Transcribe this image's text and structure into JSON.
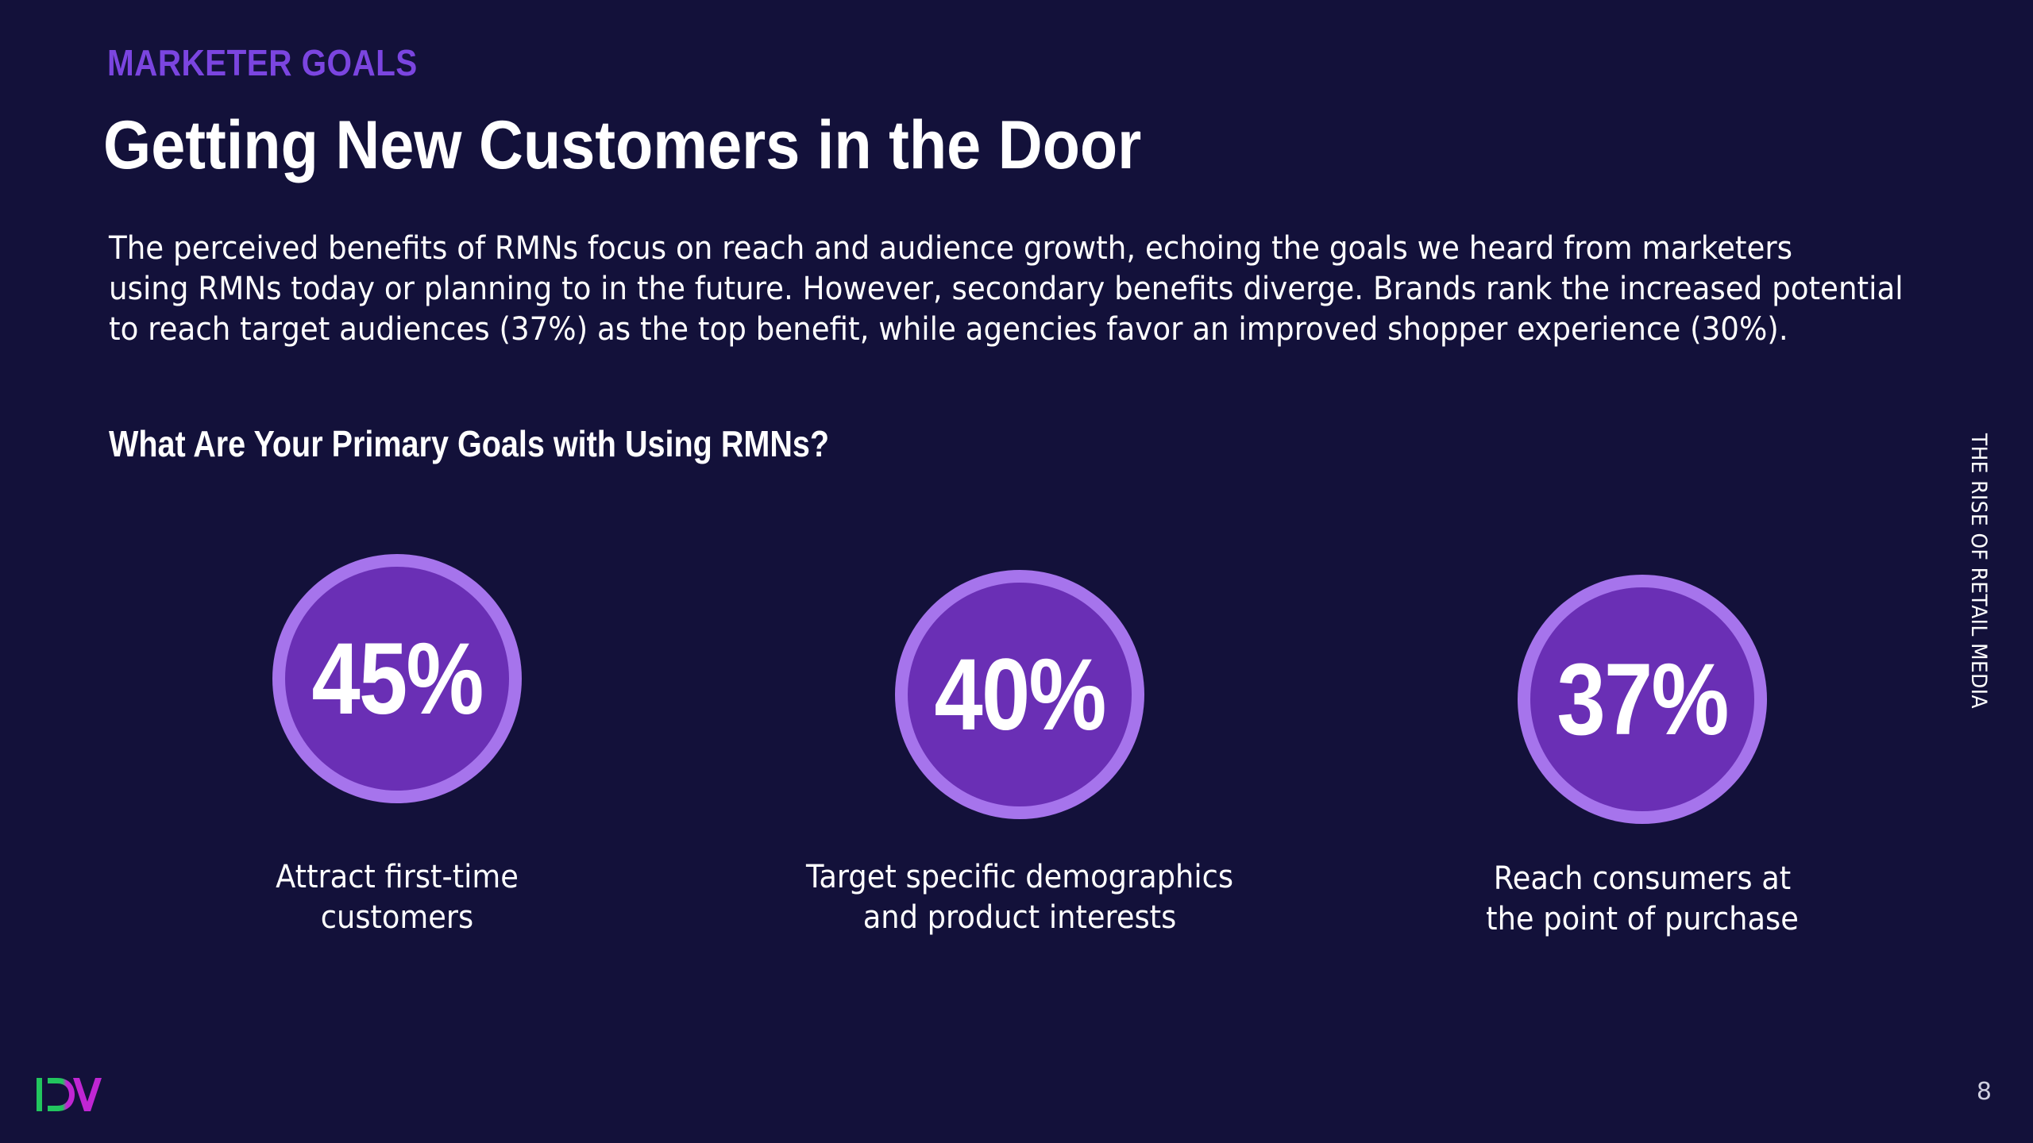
{
  "header": {
    "eyebrow": "MARKETER GOALS",
    "title": "Getting New Customers in the Door"
  },
  "intro": {
    "lines": [
      "The perceived benefits of RMNs focus on reach and audience growth, echoing the goals we heard from marketers",
      "using RMNs today or planning to in the future. However, secondary benefits diverge. Brands rank the increased potential",
      "to reach target audiences (37%) as the top benefit, while agencies favor an improved shopper experience (30%)."
    ]
  },
  "question": "What Are Your Primary Goals with Using RMNs?",
  "stats": [
    {
      "value": "45%",
      "label_lines": [
        "Attract first-time",
        "customers"
      ]
    },
    {
      "value": "40%",
      "label_lines": [
        "Target specific demographics",
        "and product interests"
      ]
    },
    {
      "value": "37%",
      "label_lines": [
        "Reach consumers at",
        "the point of purchase"
      ]
    }
  ],
  "sidebar_text": "THE RISE OF RETAIL MEDIA",
  "page_number": "8",
  "logo_name": "dv-logo-icon",
  "colors": {
    "background": "#13113a",
    "accent": "#7b45e0",
    "ring_outer": "#a674ec",
    "ring_inner": "#6a2fb5",
    "logo_green": "#22c55e",
    "logo_magenta": "#c026d3"
  }
}
